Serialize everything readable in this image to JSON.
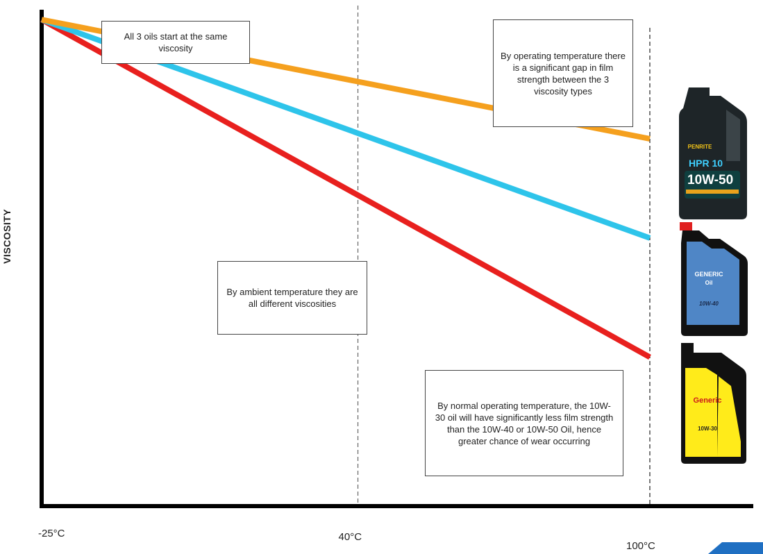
{
  "chart_data": {
    "type": "line",
    "title": "",
    "xlabel": "",
    "ylabel": "VISCOSITY",
    "x_tick_labels": [
      "-25°C",
      "40°C",
      "100°C"
    ],
    "x_ticks": [
      -25,
      40,
      100
    ],
    "xlim": [
      -25,
      100
    ],
    "ylim": [
      0,
      1
    ],
    "grid": false,
    "legend": "none",
    "series": [
      {
        "color": "#F5A01E",
        "x": [
          -25,
          100
        ],
        "y": [
          0.98,
          0.74
        ]
      },
      {
        "color": "#2EC4EA",
        "x": [
          -25,
          100
        ],
        "y": [
          0.98,
          0.54
        ]
      },
      {
        "color": "#E8201E",
        "x": [
          -25,
          100
        ],
        "y": [
          0.98,
          0.3
        ]
      }
    ],
    "annotations": [
      {
        "text": "All 3 oils start at the same viscosity"
      },
      {
        "text": "By operating temperature there is a significant gap in film strength between the 3 viscosity types"
      },
      {
        "text": "By ambient temperature they are all different viscosities"
      },
      {
        "text": "By normal operating temperature, the 10W-30 oil will have significantly less film strength than the 10W-40 or 10W-50 Oil, hence greater chance of wear occurring"
      }
    ]
  },
  "bottles": [
    {
      "brand": "PENRITE",
      "product": "HPR 10",
      "grade": "10W-50",
      "color": "#1e2528"
    },
    {
      "brand": "GENERIC",
      "product": "Oil",
      "grade": "10W-40",
      "color": "#4f86c6"
    },
    {
      "brand": "Generic",
      "product": "",
      "grade": "10W-30",
      "color": "#ffeb1a"
    }
  ],
  "colors": {
    "axis": "#000000",
    "dashed": "#666666",
    "accent": "#1f6fc2"
  }
}
